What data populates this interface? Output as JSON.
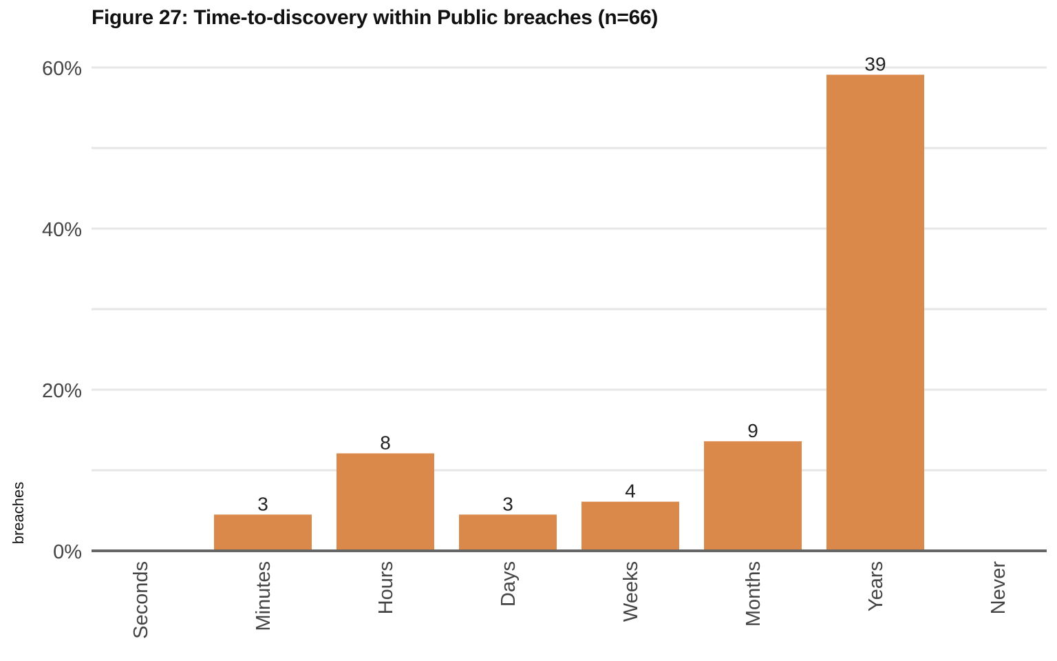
{
  "chart_data": {
    "type": "bar",
    "title": "Figure 27: Time-to-discovery within Public breaches (n=66)",
    "ylabel": "breaches",
    "xlabel": "",
    "categories": [
      "Seconds",
      "Minutes",
      "Hours",
      "Days",
      "Weeks",
      "Months",
      "Years",
      "Never"
    ],
    "values": [
      0,
      4.5,
      12.1,
      4.5,
      6.1,
      13.6,
      59.1,
      0
    ],
    "value_unit": "% of breaches",
    "data_labels": [
      "",
      "3",
      "8",
      "3",
      "4",
      "9",
      "39",
      ""
    ],
    "y_ticks": [
      "0%",
      "20%",
      "40%",
      "60%"
    ],
    "y_tick_values": [
      0,
      20,
      40,
      60
    ],
    "ylim": [
      0,
      60
    ],
    "grid": true,
    "legend": "none",
    "colors": {
      "bar": "#DB894B",
      "grid": "#E6E6E6",
      "baseline": "#666666"
    }
  }
}
